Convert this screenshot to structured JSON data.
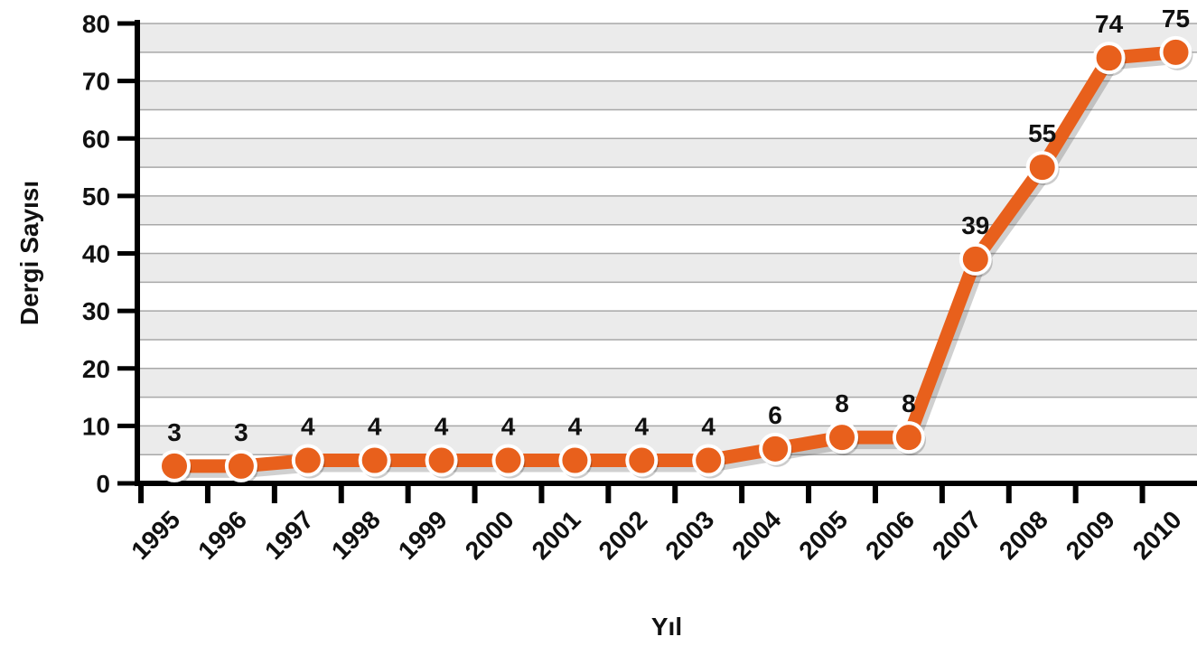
{
  "chart_data": {
    "type": "line",
    "title": "",
    "xlabel": "Yıl",
    "ylabel": "Dergi Sayısı",
    "categories": [
      "1995",
      "1996",
      "1997",
      "1998",
      "1999",
      "2000",
      "2001",
      "2002",
      "2003",
      "2004",
      "2005",
      "2006",
      "2007",
      "2008",
      "2009",
      "2010"
    ],
    "series": [
      {
        "values": [
          3,
          3,
          4,
          4,
          4,
          4,
          4,
          4,
          4,
          6,
          8,
          8,
          39,
          55,
          74,
          75
        ]
      }
    ],
    "data_labels": [
      "3",
      "3",
      "4",
      "4",
      "4",
      "4",
      "4",
      "4",
      "4",
      "6",
      "8",
      "8",
      "39",
      "55",
      "74",
      "75"
    ],
    "ylim": [
      0,
      80
    ],
    "yticks": [
      0,
      10,
      20,
      30,
      40,
      50,
      60,
      70,
      80
    ],
    "yticks_labels": [
      "0",
      "10",
      "20",
      "30",
      "40",
      "50",
      "60",
      "70",
      "80"
    ],
    "grid": true,
    "line_color": "#e8601c",
    "marker_stroke": "#ffffff",
    "grid_band_color": "#ebebeb"
  }
}
